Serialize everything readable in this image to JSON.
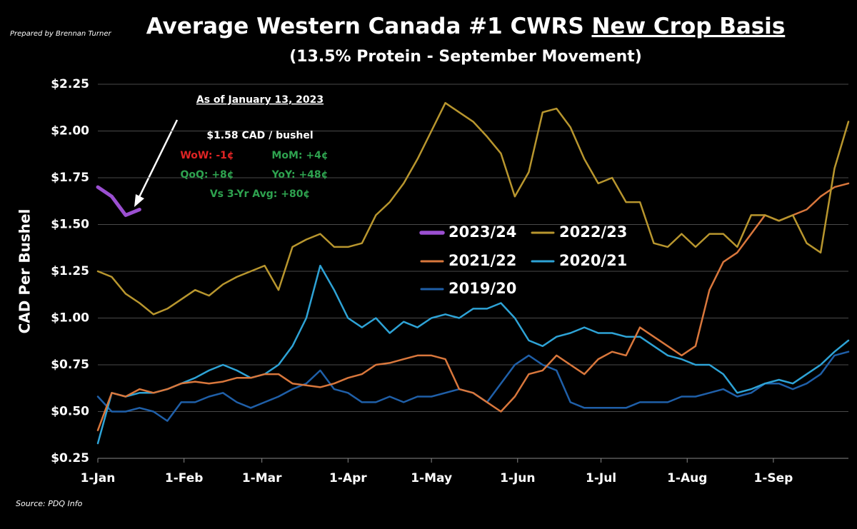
{
  "chart_data": {
    "type": "line",
    "title": "Average Western Canada #1 CWRS",
    "title_emphasis": "New Crop Basis",
    "subtitle": "(13.5% Protein - September Movement)",
    "credit": "Prepared by Brennan Turner",
    "source": "Source: PDQ Info",
    "y_label": "CAD Per Bushel",
    "annotations": [
      {
        "text": "As of January 13, 2023",
        "color": "#ffffff",
        "underline": true
      },
      {
        "text": "$1.58 CAD / bushel",
        "color": "#ffffff"
      },
      {
        "text": "WoW: -1¢",
        "color": "#e02424"
      },
      {
        "text": "MoM: +4¢",
        "color": "#2ea24f"
      },
      {
        "text": "QoQ: +8¢",
        "color": "#2ea24f"
      },
      {
        "text": "YoY: +48¢",
        "color": "#2ea24f"
      },
      {
        "text": "Vs 3-Yr Avg: +80¢",
        "color": "#2ea24f"
      }
    ],
    "x": [
      0,
      5,
      10,
      15,
      20,
      25,
      30,
      35,
      40,
      45,
      50,
      55,
      60,
      65,
      70,
      75,
      80,
      85,
      90,
      95,
      100,
      105,
      110,
      115,
      120,
      125,
      130,
      135,
      140,
      145,
      150,
      155,
      160,
      165,
      170,
      175,
      180,
      185,
      190,
      195,
      200,
      205,
      210,
      215,
      220,
      225,
      230,
      235,
      240,
      245,
      250,
      255,
      260,
      265,
      270
    ],
    "xlim": [
      0,
      270
    ],
    "xticks": [
      {
        "value": 0,
        "label": "1-Jan"
      },
      {
        "value": 31,
        "label": "1-Feb"
      },
      {
        "value": 59,
        "label": "1-Mar"
      },
      {
        "value": 90,
        "label": "1-Apr"
      },
      {
        "value": 120,
        "label": "1-May"
      },
      {
        "value": 151,
        "label": "1-Jun"
      },
      {
        "value": 181,
        "label": "1-Jul"
      },
      {
        "value": 212,
        "label": "1-Aug"
      },
      {
        "value": 243,
        "label": "1-Sep"
      }
    ],
    "ylim": [
      0.25,
      2.25
    ],
    "yticks": [
      {
        "value": 0.25,
        "label": "$0.25"
      },
      {
        "value": 0.5,
        "label": "$0.50"
      },
      {
        "value": 0.75,
        "label": "$0.75"
      },
      {
        "value": 1.0,
        "label": "$1.00"
      },
      {
        "value": 1.25,
        "label": "$1.25"
      },
      {
        "value": 1.5,
        "label": "$1.50"
      },
      {
        "value": 1.75,
        "label": "$1.75"
      },
      {
        "value": 2.0,
        "label": "$2.00"
      },
      {
        "value": 2.25,
        "label": "$2.25"
      }
    ],
    "grid": true,
    "series": [
      {
        "name": "2023/24",
        "color": "#9b4fd1",
        "width": 5,
        "values": [
          1.7,
          1.65,
          1.55,
          1.58,
          null,
          null,
          null,
          null,
          null,
          null,
          null,
          null,
          null,
          null,
          null,
          null,
          null,
          null,
          null,
          null,
          null,
          null,
          null,
          null,
          null,
          null,
          null,
          null,
          null,
          null,
          null,
          null,
          null,
          null,
          null,
          null,
          null,
          null,
          null,
          null,
          null,
          null,
          null,
          null,
          null,
          null,
          null,
          null,
          null,
          null,
          null,
          null,
          null,
          null,
          null
        ]
      },
      {
        "name": "2022/23",
        "color": "#b8962e",
        "width": 2.5,
        "values": [
          1.25,
          1.22,
          1.13,
          1.08,
          1.02,
          1.05,
          1.1,
          1.15,
          1.12,
          1.18,
          1.22,
          1.25,
          1.28,
          1.15,
          1.38,
          1.42,
          1.45,
          1.38,
          1.38,
          1.4,
          1.55,
          1.62,
          1.72,
          1.85,
          2.0,
          2.15,
          2.1,
          2.05,
          1.97,
          1.88,
          1.65,
          1.78,
          2.1,
          2.12,
          2.02,
          1.85,
          1.72,
          1.75,
          1.62,
          1.62,
          1.4,
          1.38,
          1.45,
          1.38,
          1.45,
          1.45,
          1.38,
          1.55,
          1.55,
          1.52,
          1.55,
          1.4,
          1.35,
          1.8,
          2.05
        ]
      },
      {
        "name": "2021/22",
        "color": "#d9773c",
        "width": 2.5,
        "values": [
          0.4,
          0.6,
          0.58,
          0.62,
          0.6,
          0.62,
          0.65,
          0.66,
          0.65,
          0.66,
          0.68,
          0.68,
          0.7,
          0.7,
          0.65,
          0.64,
          0.63,
          0.65,
          0.68,
          0.7,
          0.75,
          0.76,
          0.78,
          0.8,
          0.8,
          0.78,
          0.62,
          0.6,
          0.55,
          0.5,
          0.58,
          0.7,
          0.72,
          0.8,
          0.75,
          0.7,
          0.78,
          0.82,
          0.8,
          0.95,
          0.9,
          0.85,
          0.8,
          0.85,
          1.15,
          1.3,
          1.35,
          1.45,
          1.55,
          1.52,
          1.55,
          1.58,
          1.65,
          1.7,
          1.72
        ]
      },
      {
        "name": "2020/21",
        "color": "#2ea3d6",
        "width": 2.5,
        "values": [
          0.33,
          0.6,
          0.58,
          0.6,
          0.6,
          0.62,
          0.65,
          0.68,
          0.72,
          0.75,
          0.72,
          0.68,
          0.7,
          0.75,
          0.85,
          1.0,
          1.28,
          1.15,
          1.0,
          0.95,
          1.0,
          0.92,
          0.98,
          0.95,
          1.0,
          1.02,
          1.0,
          1.05,
          1.05,
          1.08,
          1.0,
          0.88,
          0.85,
          0.9,
          0.92,
          0.95,
          0.92,
          0.92,
          0.9,
          0.9,
          0.85,
          0.8,
          0.78,
          0.75,
          0.75,
          0.7,
          0.6,
          0.62,
          0.65,
          0.67,
          0.65,
          0.7,
          0.75,
          0.82,
          0.88
        ]
      },
      {
        "name": "2019/20",
        "color": "#1f5fa8",
        "width": 2.5,
        "values": [
          0.58,
          0.5,
          0.5,
          0.52,
          0.5,
          0.45,
          0.55,
          0.55,
          0.58,
          0.6,
          0.55,
          0.52,
          0.55,
          0.58,
          0.62,
          0.65,
          0.72,
          0.62,
          0.6,
          0.55,
          0.55,
          0.58,
          0.55,
          0.58,
          0.58,
          0.6,
          0.62,
          0.6,
          0.55,
          0.65,
          0.75,
          0.8,
          0.75,
          0.72,
          0.55,
          0.52,
          0.52,
          0.52,
          0.52,
          0.55,
          0.55,
          0.55,
          0.58,
          0.58,
          0.6,
          0.62,
          0.58,
          0.6,
          0.65,
          0.65,
          0.62,
          0.65,
          0.7,
          0.8,
          0.82
        ]
      }
    ]
  }
}
